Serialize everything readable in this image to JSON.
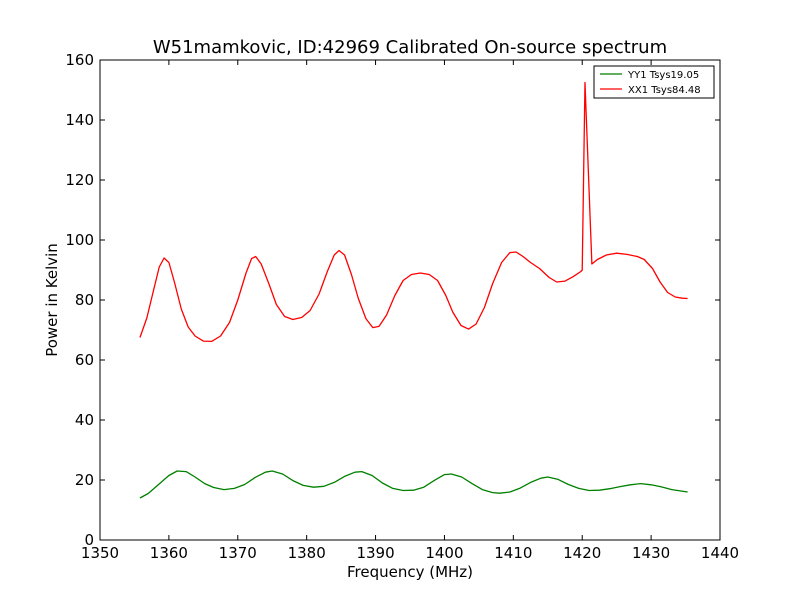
{
  "chart_data": {
    "type": "line",
    "title": "W51mamkovic, ID:42969 Calibrated On-source spectrum",
    "xlabel": "Frequency (MHz)",
    "ylabel": "Power in Kelvin",
    "xlim": [
      1350,
      1440
    ],
    "ylim": [
      0,
      160
    ],
    "xticks": [
      1350,
      1360,
      1370,
      1380,
      1390,
      1400,
      1410,
      1420,
      1430,
      1440
    ],
    "yticks": [
      0,
      20,
      40,
      60,
      80,
      100,
      120,
      140,
      160
    ],
    "grid": false,
    "legend_position": "top-right",
    "series": [
      {
        "name": "YY1 Tsys19.05",
        "color": "#008000",
        "points": [
          [
            1355.8,
            14.0
          ],
          [
            1357.0,
            15.5
          ],
          [
            1358.5,
            18.5
          ],
          [
            1360.0,
            21.5
          ],
          [
            1361.2,
            23.0
          ],
          [
            1362.5,
            22.8
          ],
          [
            1363.8,
            21.0
          ],
          [
            1365.2,
            18.8
          ],
          [
            1366.5,
            17.5
          ],
          [
            1368.0,
            16.8
          ],
          [
            1369.5,
            17.2
          ],
          [
            1371.0,
            18.5
          ],
          [
            1372.5,
            20.8
          ],
          [
            1374.0,
            22.6
          ],
          [
            1375.0,
            23.0
          ],
          [
            1376.5,
            22.0
          ],
          [
            1378.0,
            19.8
          ],
          [
            1379.5,
            18.2
          ],
          [
            1381.0,
            17.6
          ],
          [
            1382.5,
            17.9
          ],
          [
            1384.0,
            19.2
          ],
          [
            1385.5,
            21.2
          ],
          [
            1387.0,
            22.6
          ],
          [
            1388.0,
            22.8
          ],
          [
            1389.5,
            21.5
          ],
          [
            1391.0,
            19.0
          ],
          [
            1392.5,
            17.2
          ],
          [
            1394.0,
            16.5
          ],
          [
            1395.5,
            16.6
          ],
          [
            1397.0,
            17.6
          ],
          [
            1398.5,
            19.8
          ],
          [
            1400.0,
            21.8
          ],
          [
            1401.0,
            22.0
          ],
          [
            1402.5,
            21.0
          ],
          [
            1404.0,
            18.8
          ],
          [
            1405.5,
            16.8
          ],
          [
            1407.0,
            15.8
          ],
          [
            1408.0,
            15.6
          ],
          [
            1409.5,
            16.0
          ],
          [
            1411.0,
            17.3
          ],
          [
            1412.5,
            19.2
          ],
          [
            1414.0,
            20.6
          ],
          [
            1415.0,
            21.0
          ],
          [
            1416.5,
            20.2
          ],
          [
            1418.0,
            18.5
          ],
          [
            1419.5,
            17.2
          ],
          [
            1421.0,
            16.5
          ],
          [
            1422.5,
            16.6
          ],
          [
            1424.0,
            17.1
          ],
          [
            1425.5,
            17.8
          ],
          [
            1427.0,
            18.4
          ],
          [
            1428.5,
            18.8
          ],
          [
            1430.0,
            18.4
          ],
          [
            1431.5,
            17.7
          ],
          [
            1433.0,
            16.8
          ],
          [
            1435.3,
            16.0
          ]
        ]
      },
      {
        "name": "XX1 Tsys84.48",
        "color": "#ff0000",
        "points": [
          [
            1355.8,
            67.5
          ],
          [
            1356.8,
            74.0
          ],
          [
            1357.8,
            83.5
          ],
          [
            1358.6,
            91.0
          ],
          [
            1359.3,
            94.0
          ],
          [
            1360.0,
            92.5
          ],
          [
            1360.8,
            86.0
          ],
          [
            1361.8,
            77.0
          ],
          [
            1362.8,
            71.0
          ],
          [
            1363.8,
            68.0
          ],
          [
            1365.0,
            66.3
          ],
          [
            1366.2,
            66.2
          ],
          [
            1367.5,
            68.0
          ],
          [
            1368.8,
            72.5
          ],
          [
            1370.0,
            80.0
          ],
          [
            1371.2,
            89.0
          ],
          [
            1372.0,
            93.8
          ],
          [
            1372.6,
            94.5
          ],
          [
            1373.4,
            92.0
          ],
          [
            1374.5,
            85.5
          ],
          [
            1375.6,
            78.5
          ],
          [
            1376.8,
            74.5
          ],
          [
            1378.0,
            73.5
          ],
          [
            1379.3,
            74.2
          ],
          [
            1380.5,
            76.5
          ],
          [
            1381.8,
            82.0
          ],
          [
            1383.0,
            89.5
          ],
          [
            1384.0,
            95.0
          ],
          [
            1384.7,
            96.5
          ],
          [
            1385.5,
            95.0
          ],
          [
            1386.5,
            88.5
          ],
          [
            1387.5,
            80.5
          ],
          [
            1388.6,
            73.8
          ],
          [
            1389.6,
            70.8
          ],
          [
            1390.5,
            71.2
          ],
          [
            1391.6,
            75.0
          ],
          [
            1392.8,
            81.5
          ],
          [
            1394.0,
            86.5
          ],
          [
            1395.2,
            88.5
          ],
          [
            1396.5,
            89.0
          ],
          [
            1397.8,
            88.5
          ],
          [
            1399.0,
            86.5
          ],
          [
            1400.2,
            81.5
          ],
          [
            1401.2,
            76.0
          ],
          [
            1402.4,
            71.5
          ],
          [
            1403.5,
            70.3
          ],
          [
            1404.6,
            72.0
          ],
          [
            1405.8,
            77.5
          ],
          [
            1407.0,
            85.5
          ],
          [
            1408.3,
            92.5
          ],
          [
            1409.5,
            95.8
          ],
          [
            1410.4,
            96.0
          ],
          [
            1411.4,
            94.5
          ],
          [
            1412.5,
            92.5
          ],
          [
            1413.8,
            90.5
          ],
          [
            1415.2,
            87.5
          ],
          [
            1416.3,
            86.0
          ],
          [
            1417.5,
            86.3
          ],
          [
            1418.7,
            87.8
          ],
          [
            1419.8,
            89.5
          ],
          [
            1420.0,
            90.0
          ],
          [
            1420.4,
            152.5
          ],
          [
            1421.4,
            92.0
          ],
          [
            1422.2,
            93.5
          ],
          [
            1423.5,
            95.0
          ],
          [
            1425.0,
            95.6
          ],
          [
            1426.5,
            95.2
          ],
          [
            1428.0,
            94.5
          ],
          [
            1429.0,
            93.5
          ],
          [
            1430.2,
            90.5
          ],
          [
            1431.3,
            86.0
          ],
          [
            1432.4,
            82.5
          ],
          [
            1433.5,
            81.0
          ],
          [
            1434.5,
            80.6
          ],
          [
            1435.3,
            80.5
          ]
        ]
      }
    ]
  }
}
